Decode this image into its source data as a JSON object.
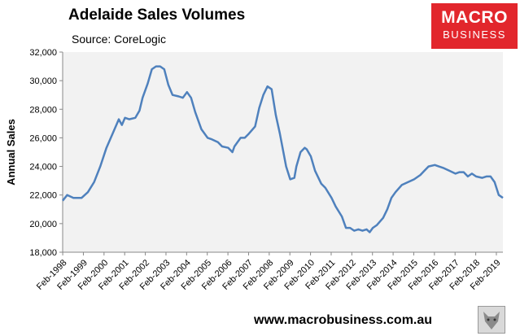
{
  "title": "Adelaide Sales Volumes",
  "subtitle": "Source: CoreLogic",
  "logo": {
    "line1": "MACRO",
    "line2": "BUSINESS"
  },
  "footer": {
    "url": "www.macrobusiness.com.au",
    "icon": "wolf-icon"
  },
  "colors": {
    "line": "#4f81bd",
    "plot_bg": "#f2f2f2",
    "logo_bg": "#e2262c"
  },
  "chart_data": {
    "type": "line",
    "title": "Adelaide Sales Volumes",
    "subtitle": "Source: CoreLogic",
    "xlabel": "",
    "ylabel": "Annual Sales",
    "ylim": [
      18000,
      32000
    ],
    "yticks": [
      18000,
      20000,
      22000,
      24000,
      26000,
      28000,
      30000,
      32000
    ],
    "ytick_labels": [
      "18,000",
      "20,000",
      "22,000",
      "24,000",
      "26,000",
      "28,000",
      "30,000",
      "32,000"
    ],
    "xlim": [
      1998.08,
      2019.4
    ],
    "xticks": [
      "Feb-1998",
      "Feb-1999",
      "Feb-2000",
      "Feb-2001",
      "Feb-2002",
      "Feb-2003",
      "Feb-2004",
      "Feb-2005",
      "Feb-2006",
      "Feb-2007",
      "Feb-2008",
      "Feb-2009",
      "Feb-2010",
      "Feb-2011",
      "Feb-2012",
      "Feb-2013",
      "Feb-2014",
      "Feb-2015",
      "Feb-2016",
      "Feb-2017",
      "Feb-2018",
      "Feb-2019"
    ],
    "grid": false,
    "legend": "none",
    "series": [
      {
        "x": [
          1998.08,
          1998.3,
          1998.6,
          1999.0,
          1999.3,
          1999.6,
          1999.9,
          2000.2,
          2000.5,
          2000.8,
          2000.95,
          2001.1,
          2001.3,
          2001.6,
          2001.8,
          2001.95,
          2002.2,
          2002.4,
          2002.6,
          2002.8,
          2003.0,
          2003.2,
          2003.4,
          2003.7,
          2003.9,
          2004.1,
          2004.3,
          2004.5,
          2004.8,
          2005.1,
          2005.3,
          2005.6,
          2005.8,
          2006.1,
          2006.3,
          2006.4,
          2006.7,
          2006.9,
          2007.1,
          2007.4,
          2007.6,
          2007.8,
          2008.0,
          2008.2,
          2008.4,
          2008.6,
          2008.9,
          2009.1,
          2009.3,
          2009.4,
          2009.6,
          2009.8,
          2009.9,
          2010.1,
          2010.3,
          2010.6,
          2010.8,
          2011.1,
          2011.3,
          2011.6,
          2011.8,
          2012.0,
          2012.2,
          2012.4,
          2012.6,
          2012.8,
          2012.95,
          2013.1,
          2013.3,
          2013.6,
          2013.8,
          2014.0,
          2014.2,
          2014.5,
          2014.8,
          2015.1,
          2015.4,
          2015.6,
          2015.8,
          2016.1,
          2016.3,
          2016.5,
          2016.8,
          2017.1,
          2017.3,
          2017.5,
          2017.7,
          2017.9,
          2018.1,
          2018.4,
          2018.6,
          2018.8,
          2019.0,
          2019.2,
          2019.4
        ],
        "y": [
          21600,
          22000,
          21800,
          21800,
          22200,
          22900,
          24000,
          25300,
          26300,
          27300,
          26900,
          27400,
          27300,
          27400,
          27900,
          28800,
          29800,
          30800,
          31000,
          31000,
          30800,
          29700,
          29000,
          28900,
          28800,
          29200,
          28800,
          27800,
          26600,
          26000,
          25900,
          25700,
          25400,
          25300,
          25000,
          25400,
          26000,
          26000,
          26300,
          26800,
          28100,
          29000,
          29600,
          29400,
          27600,
          26300,
          24000,
          23100,
          23200,
          24000,
          25000,
          25300,
          25200,
          24700,
          23700,
          22800,
          22500,
          21800,
          21200,
          20500,
          19700,
          19700,
          19500,
          19600,
          19500,
          19600,
          19400,
          19700,
          19900,
          20400,
          21000,
          21800,
          22200,
          22700,
          22900,
          23100,
          23400,
          23700,
          24000,
          24100,
          24000,
          23900,
          23700,
          23500,
          23600,
          23600,
          23300,
          23500,
          23300,
          23200,
          23300,
          23300,
          22900,
          22000,
          21800
        ]
      }
    ]
  }
}
